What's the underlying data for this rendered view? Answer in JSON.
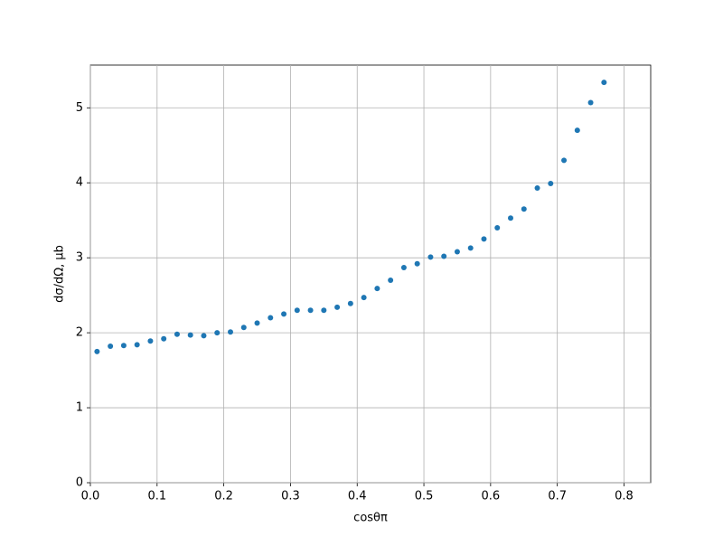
{
  "chart_data": {
    "type": "scatter",
    "xlabel": "cosθπ",
    "ylabel": "dσ/dΩ, μb",
    "x": [
      0.01,
      0.03,
      0.05,
      0.07,
      0.09,
      0.11,
      0.13,
      0.15,
      0.17,
      0.19,
      0.21,
      0.23,
      0.25,
      0.27,
      0.29,
      0.31,
      0.33,
      0.35,
      0.37,
      0.39,
      0.41,
      0.43,
      0.45,
      0.47,
      0.49,
      0.51,
      0.53,
      0.55,
      0.57,
      0.59,
      0.61,
      0.63,
      0.65,
      0.67,
      0.69,
      0.71,
      0.73,
      0.75,
      0.77
    ],
    "values": [
      1.75,
      1.82,
      1.83,
      1.84,
      1.89,
      1.92,
      1.98,
      1.97,
      1.96,
      2.0,
      2.01,
      2.07,
      2.13,
      2.2,
      2.25,
      2.3,
      2.3,
      2.3,
      2.34,
      2.39,
      2.47,
      2.59,
      2.7,
      2.87,
      2.92,
      3.01,
      3.02,
      3.08,
      3.13,
      3.25,
      3.4,
      3.53,
      3.65,
      3.93,
      3.99,
      4.3,
      4.7,
      5.07,
      5.34
    ],
    "color": "#1f77b4",
    "xlim": [
      0,
      0.84
    ],
    "ylim": [
      0,
      5.57
    ],
    "xticks": [
      {
        "value": 0,
        "label": "0.0"
      },
      0.1,
      0.2,
      0.3,
      0.4,
      0.5,
      0.6,
      0.7,
      0.8
    ],
    "yticks": [
      0,
      1,
      2,
      3,
      4,
      5
    ],
    "grid": true
  }
}
